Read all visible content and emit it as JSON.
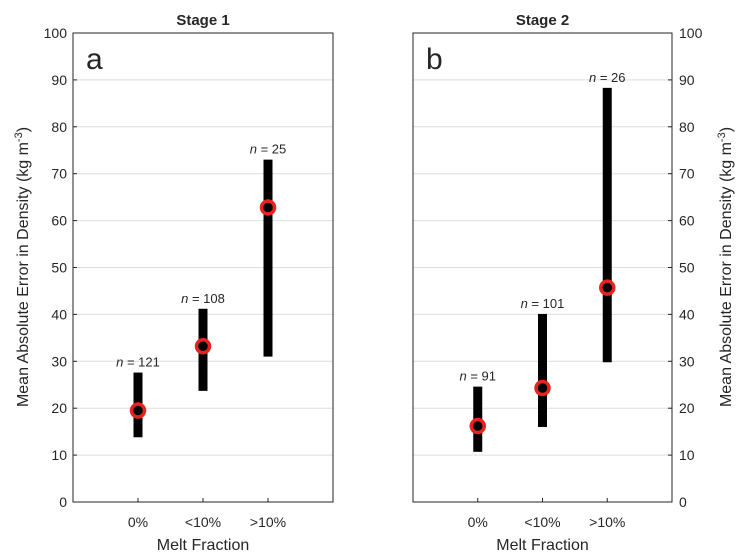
{
  "figure": {
    "ylabel": "Mean Absolute Error in Density (kg m",
    "ylabel_sup": "-3",
    "ylabel_close": ")"
  },
  "chart_data": [
    {
      "type": "errorbar",
      "title": "Stage 1",
      "panel_label": "a",
      "xlabel": "Melt Fraction",
      "ylabel": "Mean Absolute Error in Density (kg m-3)",
      "categories": [
        "0%",
        "<10%",
        ">10%"
      ],
      "mean": [
        19.5,
        33.2,
        62.8
      ],
      "low": [
        13.8,
        23.7,
        31.0
      ],
      "high": [
        27.6,
        41.2,
        73.0
      ],
      "n": [
        121,
        108,
        25
      ],
      "n_labels": [
        "= 121",
        "= 108",
        "= 25"
      ],
      "ylim": [
        0,
        100
      ],
      "yticks": [
        0,
        10,
        20,
        30,
        40,
        50,
        60,
        70,
        80,
        90,
        100
      ],
      "grid": "horizontal"
    },
    {
      "type": "errorbar",
      "title": "Stage 2",
      "panel_label": "b",
      "xlabel": "Melt Fraction",
      "ylabel": "Mean Absolute Error in Density (kg m-3)",
      "categories": [
        "0%",
        "<10%",
        ">10%"
      ],
      "mean": [
        16.2,
        24.3,
        45.7
      ],
      "low": [
        10.7,
        16.0,
        29.8
      ],
      "high": [
        24.6,
        40.1,
        88.3
      ],
      "n": [
        91,
        101,
        26
      ],
      "n_labels": [
        "= 91",
        "= 101",
        "= 26"
      ],
      "ylim": [
        0,
        100
      ],
      "yticks": [
        0,
        10,
        20,
        30,
        40,
        50,
        60,
        70,
        80,
        90,
        100
      ],
      "grid": "horizontal"
    }
  ],
  "colors": {
    "bar": "#000000",
    "marker_ring": "#e8231f",
    "marker_center": "#000000",
    "grid": "#dedede",
    "axis": "#262626"
  }
}
